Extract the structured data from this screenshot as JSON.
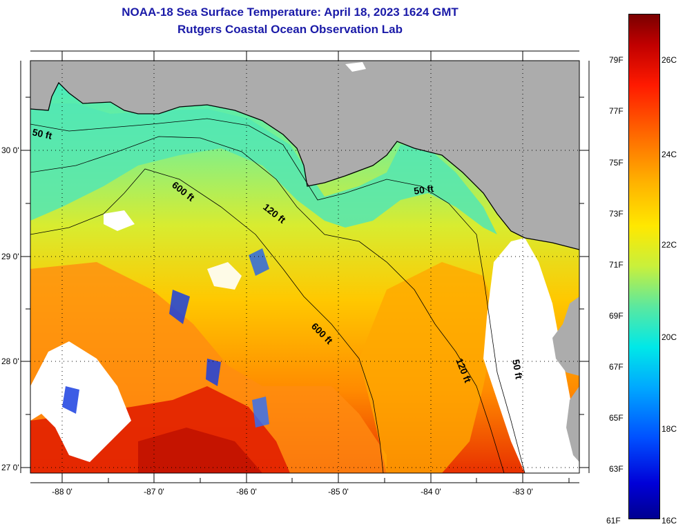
{
  "title_line1": "NOAA-18 Sea Surface Temperature:  April 18, 2023 1624 GMT",
  "title_line2": "Rutgers Coastal Ocean Observation Lab",
  "map": {
    "lat_labels": [
      "30 0'",
      "29 0'",
      "28 0'",
      "27 0'"
    ],
    "lon_labels": [
      "-88 0'",
      "-87 0'",
      "-86 0'",
      "-85 0'",
      "-84 0'",
      "-83 0'"
    ],
    "contours": [
      "50 ft",
      "600 ft",
      "120 ft",
      "50 ft",
      "600 ft",
      "120 ft",
      "50 ft"
    ],
    "colors": {
      "land": "#acacac",
      "cloud": "#ffffff",
      "grid": "#000000"
    }
  },
  "colorbar": {
    "fahrenheit_labels": [
      "79F",
      "77F",
      "75F",
      "73F",
      "71F",
      "69F",
      "67F",
      "65F",
      "63F",
      "61F"
    ],
    "celsius_labels": [
      "26C",
      "24C",
      "22C",
      "20C",
      "18C",
      "16C"
    ]
  }
}
